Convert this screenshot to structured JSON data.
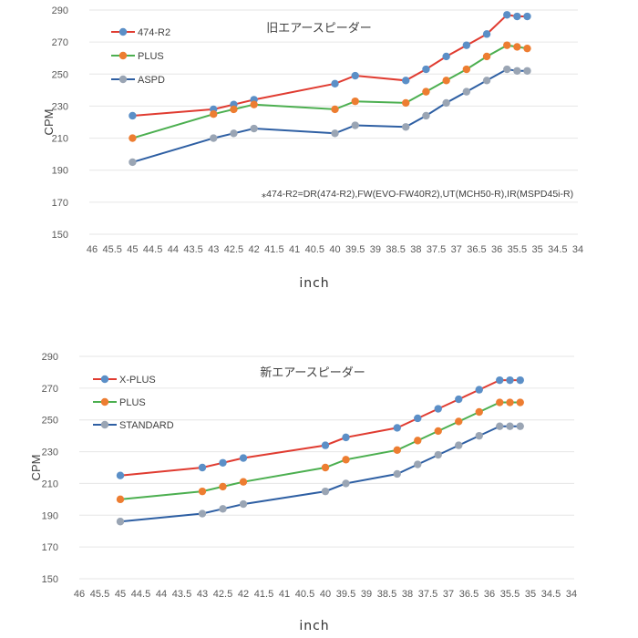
{
  "chart_data": [
    {
      "type": "line",
      "title": "旧エアースピーダー",
      "xlabel": "inch",
      "ylabel": "CPM",
      "xlim": [
        46,
        34
      ],
      "ylim": [
        150,
        290
      ],
      "x_reversed": true,
      "yticks": [
        290,
        270,
        250,
        230,
        210,
        190,
        170,
        150
      ],
      "xticks": [
        "46",
        "45.5",
        "45",
        "44.5",
        "44",
        "43.5",
        "43",
        "42.5",
        "42",
        "41.5",
        "41",
        "40.5",
        "40",
        "39.5",
        "39",
        "38.5",
        "38",
        "37.5",
        "37",
        "36.5",
        "36",
        "35.5",
        "35",
        "34.5",
        "34"
      ],
      "grid": true,
      "legend_position": "top-left",
      "note": "⁎474-R2=DR(474-R2),FW(EVO-FW40R2),UT(MCH50-R),IR(MSPD45i-R)",
      "x": [
        45,
        43,
        42.5,
        42,
        40,
        39.5,
        38.25,
        37.75,
        37.25,
        36.75,
        36.25,
        35.75,
        35.5,
        35.25
      ],
      "series": [
        {
          "name": "474-R2",
          "line_color": "#e03c31",
          "marker_color": "#5b8fc7",
          "values": [
            224,
            228,
            231,
            234,
            244,
            249,
            246,
            253,
            261,
            268,
            275,
            287,
            286,
            286
          ]
        },
        {
          "name": "PLUS",
          "line_color": "#4caf50",
          "marker_color": "#ed7d31",
          "values": [
            210,
            225,
            228,
            231,
            228,
            233,
            232,
            239,
            246,
            253,
            261,
            268,
            267,
            266
          ]
        },
        {
          "name": "ASPD",
          "line_color": "#2e5fa3",
          "marker_color": "#9aa5b4",
          "values": [
            195,
            210,
            213,
            216,
            213,
            218,
            217,
            224,
            232,
            239,
            246,
            253,
            252,
            252
          ]
        }
      ]
    },
    {
      "type": "line",
      "title": "新エアースピーダー",
      "xlabel": "inch",
      "ylabel": "CPM",
      "xlim": [
        46,
        34
      ],
      "ylim": [
        150,
        290
      ],
      "x_reversed": true,
      "yticks": [
        290,
        270,
        250,
        230,
        210,
        190,
        170,
        150
      ],
      "xticks": [
        "46",
        "45.5",
        "45",
        "44.5",
        "44",
        "43.5",
        "43",
        "42.5",
        "42",
        "41.5",
        "41",
        "40.5",
        "40",
        "39.5",
        "39",
        "38.5",
        "38",
        "37.5",
        "37",
        "36.5",
        "36",
        "35.5",
        "35",
        "34.5",
        "34"
      ],
      "grid": true,
      "legend_position": "top-left",
      "x": [
        45,
        43,
        42.5,
        42,
        40,
        39.5,
        38.25,
        37.75,
        37.25,
        36.75,
        36.25,
        35.75,
        35.5,
        35.25
      ],
      "series": [
        {
          "name": "X-PLUS",
          "line_color": "#e03c31",
          "marker_color": "#5b8fc7",
          "values": [
            215,
            220,
            223,
            226,
            234,
            239,
            245,
            251,
            257,
            263,
            269,
            275,
            275,
            275
          ]
        },
        {
          "name": "PLUS",
          "line_color": "#4caf50",
          "marker_color": "#ed7d31",
          "values": [
            200,
            205,
            208,
            211,
            220,
            225,
            231,
            237,
            243,
            249,
            255,
            261,
            261,
            261
          ]
        },
        {
          "name": "STANDARD",
          "line_color": "#2e5fa3",
          "marker_color": "#9aa5b4",
          "values": [
            186,
            191,
            194,
            197,
            205,
            210,
            216,
            222,
            228,
            234,
            240,
            246,
            246,
            246
          ]
        }
      ]
    }
  ]
}
